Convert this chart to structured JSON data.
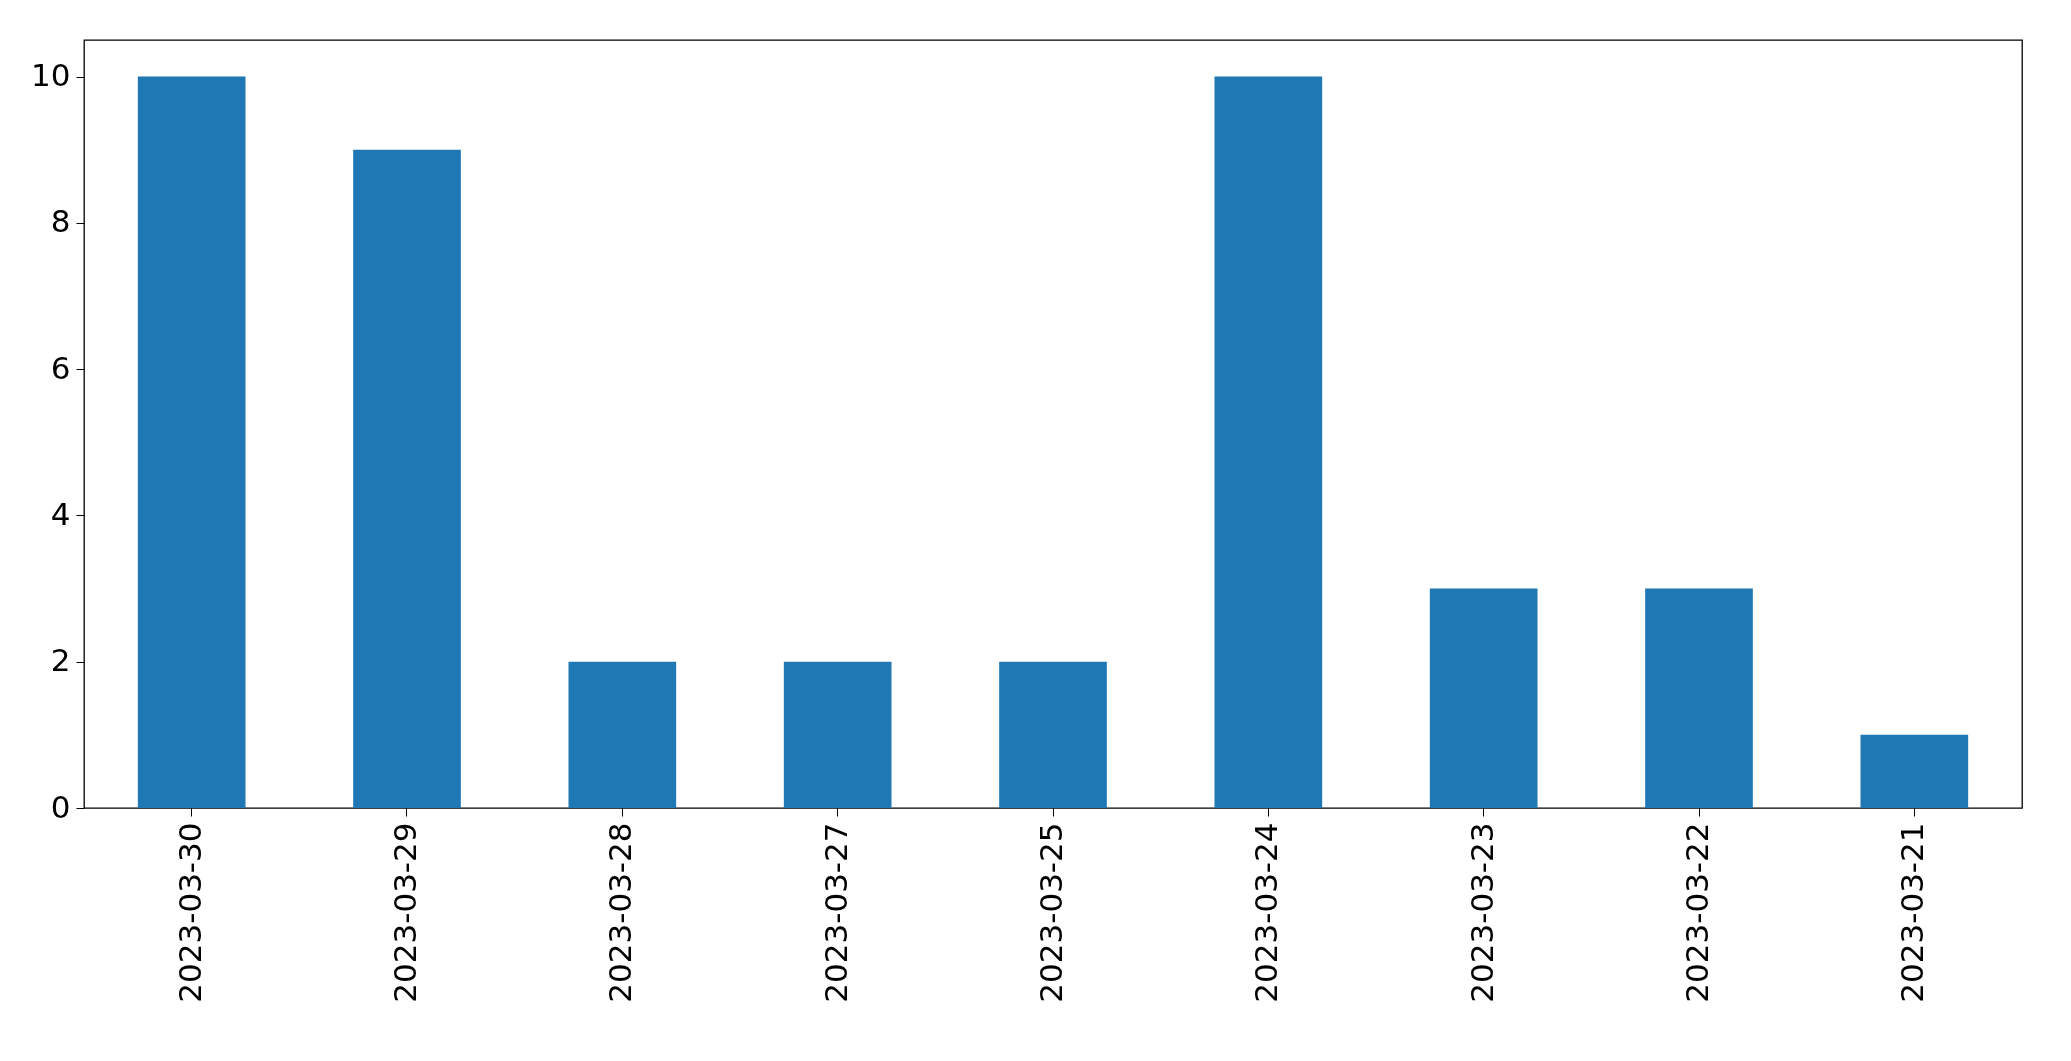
{
  "chart_data": {
    "type": "bar",
    "categories": [
      "2023-03-30",
      "2023-03-29",
      "2023-03-28",
      "2023-03-27",
      "2023-03-25",
      "2023-03-24",
      "2023-03-23",
      "2023-03-22",
      "2023-03-21"
    ],
    "values": [
      10,
      9,
      2,
      2,
      2,
      10,
      3,
      3,
      1
    ],
    "color": "#1f77b4",
    "ylim": [
      0,
      10.5
    ],
    "yticks": [
      0,
      2,
      4,
      6,
      8,
      10
    ],
    "grid": false
  }
}
